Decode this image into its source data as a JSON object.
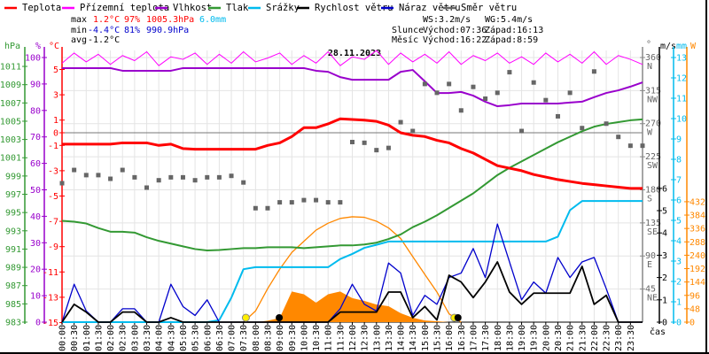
{
  "chart_data": {
    "type": "line",
    "title": "28.11.2023",
    "step_minutes": 30,
    "x_label": "čas",
    "x_ticks": [
      "00:00",
      "00:30",
      "01:00",
      "01:30",
      "02:00",
      "02:30",
      "03:00",
      "03:30",
      "04:00",
      "04:30",
      "05:00",
      "05:30",
      "06:00",
      "06:30",
      "07:00",
      "07:30",
      "08:00",
      "08:30",
      "09:00",
      "09:30",
      "10:00",
      "10:30",
      "11:00",
      "11:30",
      "12:00",
      "12:30",
      "13:00",
      "13:30",
      "14:00",
      "14:30",
      "15:00",
      "15:30",
      "16:00",
      "16:30",
      "17:00",
      "17:30",
      "18:00",
      "18:30",
      "19:00",
      "19:30",
      "20:00",
      "20:30",
      "21:00",
      "21:30",
      "22:00",
      "22:30",
      "23:00",
      "23:30"
    ],
    "legend": [
      {
        "label": "Teplota",
        "color": "#ff0000"
      },
      {
        "label": "Přízemní teplota",
        "color": "#ff00ff"
      },
      {
        "label": "Vlhkost",
        "color": "#9900cc"
      },
      {
        "label": "Tlak",
        "color": "#339933"
      },
      {
        "label": "Srážky",
        "color": "#00bbee"
      },
      {
        "label": "Rychlost větru",
        "color": "#000000"
      },
      {
        "label": "Náraz větru",
        "color": "#0000cc"
      },
      {
        "label": "Směr větru",
        "color": "#666666"
      }
    ],
    "axes": {
      "pressure": {
        "unit": "hPa",
        "range": [
          983,
          1011
        ],
        "ticks": [
          "1011",
          "1009",
          "1007",
          "1005",
          "1003",
          "1001",
          "999",
          "997",
          "995",
          "993",
          "991",
          "989",
          "987",
          "985",
          "983"
        ]
      },
      "humidity": {
        "unit": "%",
        "range": [
          0,
          100
        ],
        "ticks": [
          "100",
          "90",
          "80",
          "70",
          "60",
          "50",
          "40",
          "30",
          "20",
          "10",
          "0"
        ]
      },
      "temperature": {
        "unit": "°C",
        "range": [
          -15,
          5
        ],
        "ticks": [
          "5",
          "3",
          "1",
          "0",
          "-1",
          "-3",
          "-5",
          "-7",
          "-9",
          "-11",
          "-13",
          "-15"
        ]
      },
      "direction": {
        "unit": "°",
        "range": [
          0,
          360
        ],
        "ticks": [
          {
            "v": "360",
            "d": "N"
          },
          {
            "v": "315",
            "d": "NW"
          },
          {
            "v": "270",
            "d": "W"
          },
          {
            "v": "225",
            "d": "SW"
          },
          {
            "v": "180",
            "d": "S"
          },
          {
            "v": "135",
            "d": "SE"
          },
          {
            "v": "90",
            "d": "E"
          },
          {
            "v": "45",
            "d": "NE"
          }
        ]
      },
      "wind": {
        "unit": "m/s",
        "range": [
          0,
          6
        ],
        "ticks": [
          "6",
          "5",
          "4",
          "3",
          "2",
          "1",
          "0"
        ]
      },
      "rain": {
        "unit": "mm",
        "range": [
          0,
          13
        ],
        "ticks": [
          "13",
          "12",
          "11",
          "10",
          "9",
          "8",
          "7",
          "6",
          "5",
          "4",
          "3",
          "2",
          "1",
          "0"
        ]
      },
      "solar": {
        "unit": "W",
        "range": [
          0,
          432
        ],
        "ticks": [
          "432",
          "384",
          "336",
          "288",
          "240",
          "192",
          "144",
          "96",
          "48",
          "0"
        ]
      }
    },
    "series": {
      "temperature": [
        -0.9,
        -0.9,
        -0.9,
        -0.9,
        -0.9,
        -0.8,
        -0.8,
        -0.8,
        -1.0,
        -0.9,
        -1.25,
        -1.3,
        -1.3,
        -1.3,
        -1.3,
        -1.3,
        -1.3,
        -1.0,
        -0.8,
        -0.3,
        0.4,
        0.4,
        0.7,
        1.1,
        1.05,
        1.0,
        0.9,
        0.6,
        0.0,
        -0.2,
        -0.3,
        -0.6,
        -0.8,
        -1.25,
        -1.6,
        -2.1,
        -2.6,
        -2.8,
        -3.0,
        -3.3,
        -3.5,
        -3.7,
        -3.85,
        -4.0,
        -4.1,
        -4.2,
        -4.3,
        -4.4,
        -4.4
      ],
      "ground_temperature": [
        5.5,
        6.3,
        5.6,
        6.2,
        5.4,
        6.1,
        5.7,
        6.4,
        5.3,
        6.0,
        5.8,
        6.3,
        5.4,
        6.2,
        5.5,
        6.4,
        5.6,
        5.9,
        6.3,
        5.4,
        6.1,
        5.5,
        6.4,
        5.3,
        6.0,
        5.8,
        6.5,
        5.4,
        6.3,
        5.6,
        6.2,
        5.5,
        6.4,
        5.4,
        6.1,
        5.7,
        6.3,
        5.5,
        6.0,
        5.4,
        6.3,
        5.6,
        6.2,
        5.5,
        6.4,
        5.4,
        6.1,
        5.8,
        5.4
      ],
      "humidity": [
        96,
        96,
        96,
        96,
        96,
        95,
        95,
        95,
        95,
        95,
        96,
        96,
        96,
        96,
        96,
        96,
        96,
        96,
        96,
        96,
        96,
        95,
        94.6,
        92.6,
        91.6,
        91.6,
        91.6,
        91.6,
        94.6,
        95.3,
        91,
        86.6,
        86.6,
        87,
        85.6,
        83.3,
        81.6,
        82,
        82.6,
        82.6,
        82.6,
        82.6,
        83,
        83.3,
        85,
        86.6,
        87.6,
        89,
        90.6
      ],
      "pressure": [
        994.1,
        994.0,
        993.8,
        993.3,
        992.9,
        992.9,
        992.8,
        992.3,
        991.9,
        991.6,
        991.3,
        991.0,
        990.85,
        990.9,
        991.0,
        991.1,
        991.1,
        991.2,
        991.2,
        991.2,
        991.1,
        991.2,
        991.3,
        991.4,
        991.4,
        991.5,
        991.7,
        992.1,
        992.6,
        993.4,
        994.0,
        994.7,
        995.5,
        996.3,
        997.1,
        998.1,
        999.1,
        999.9,
        1000.6,
        1001.3,
        1002.0,
        1002.7,
        1003.3,
        1003.9,
        1004.4,
        1004.7,
        1004.9,
        1005.1,
        1005.2
      ],
      "rain": [
        0,
        0,
        0,
        0,
        0,
        0,
        0,
        0,
        0,
        0,
        0,
        0,
        0,
        0.1,
        1.2,
        2.6,
        2.7,
        2.7,
        2.7,
        2.7,
        2.7,
        2.7,
        2.7,
        3.1,
        3.35,
        3.65,
        3.8,
        3.96,
        3.96,
        3.96,
        3.96,
        3.96,
        3.96,
        3.96,
        3.96,
        3.96,
        3.96,
        3.96,
        3.96,
        3.96,
        3.96,
        4.2,
        5.5,
        5.95,
        5.95,
        5.95,
        5.95,
        5.95,
        5.95
      ],
      "solar_theoretical": [
        0,
        0,
        0,
        0,
        0,
        0,
        0,
        0,
        0,
        0,
        0,
        0,
        0,
        0,
        0,
        0,
        40,
        120,
        190,
        250,
        290,
        330,
        355,
        372,
        378,
        376,
        362,
        338,
        300,
        235,
        171,
        108,
        30,
        0,
        0,
        0,
        0,
        0,
        0,
        0,
        0,
        0,
        0,
        0,
        0,
        0,
        0,
        0,
        0
      ],
      "solar_actual": [
        0,
        0,
        0,
        0,
        0,
        0,
        0,
        0,
        0,
        0,
        0,
        0,
        0,
        0,
        0,
        0,
        0,
        5,
        15,
        110,
        100,
        70,
        100,
        110,
        86,
        76,
        63,
        57,
        32,
        16,
        6,
        3,
        0,
        0,
        0,
        0,
        0,
        0,
        0,
        0,
        0,
        0,
        0,
        0,
        0,
        0,
        0,
        0,
        0
      ],
      "wind_speed": [
        0,
        0.8,
        0.45,
        0,
        0,
        0.45,
        0.45,
        0,
        0,
        0.2,
        0,
        0,
        0,
        0,
        0,
        0,
        0,
        0,
        0,
        0,
        0,
        0,
        0,
        0.45,
        0.45,
        0.45,
        0.45,
        1.35,
        1.35,
        0.2,
        0.7,
        0.1,
        2.1,
        1.8,
        1.1,
        1.8,
        2.7,
        1.35,
        0.8,
        1.3,
        1.3,
        1.3,
        1.3,
        2.5,
        0.8,
        1.2,
        0,
        0,
        0
      ],
      "wind_gust": [
        0,
        1.7,
        0.5,
        0,
        0,
        0.6,
        0.6,
        0,
        0,
        1.7,
        0.7,
        0.3,
        1.0,
        0,
        0,
        0,
        0,
        0,
        0,
        0,
        0,
        0,
        0,
        0.6,
        1.7,
        0.8,
        0.5,
        2.65,
        2.2,
        0.3,
        1.2,
        0.8,
        2.0,
        2.2,
        3.3,
        2.0,
        4.4,
        2.7,
        1.0,
        1.8,
        1.3,
        2.9,
        2.0,
        2.7,
        2.9,
        1.5,
        0,
        0,
        0
      ],
      "wind_direction": [
        189,
        207,
        200,
        200,
        195,
        207,
        197,
        183,
        193,
        197,
        197,
        193,
        197,
        197,
        199,
        190,
        155,
        155,
        163,
        163,
        166,
        166,
        163,
        163,
        245,
        244,
        234,
        237,
        272,
        260,
        324,
        312,
        324,
        288,
        320,
        304,
        312,
        340,
        260,
        326,
        302,
        280,
        312,
        264,
        341,
        270,
        252,
        240,
        240
      ]
    }
  },
  "stats": {
    "max_label": "max",
    "max_temp": "1.2°C",
    "max_hum": "97%",
    "max_press": "1005.3hPa",
    "max_rain": "6.0mm",
    "min_label": "min",
    "min_temp": "-4.4°C",
    "min_hum": "81%",
    "min_press": "990.9hPa",
    "avg_label": "avg",
    "avg_temp": "-1.2°C",
    "ws": "WS:3.2m/s",
    "wg": "WG:5.4m/s",
    "sun_label": "Slunce",
    "sun_rise": "Východ:07:36",
    "sun_set": "Západ:16:13",
    "moon_label": "Měsíc",
    "moon_rise": "Východ:16:22",
    "moon_set": "Západ:8:59"
  },
  "events": {
    "sunrise_h": 7.6,
    "sunset_h": 16.22,
    "moonset_h": 8.98,
    "moonrise_h": 16.37
  },
  "colors": {
    "temp": "#ff0000",
    "ground": "#ff00ff",
    "hum": "#9900cc",
    "press": "#339933",
    "rain": "#00bbee",
    "wind": "#000000",
    "gust": "#0000cc",
    "dir": "#666666",
    "solar": "#ff8800",
    "grid": "#e4e4e4"
  }
}
